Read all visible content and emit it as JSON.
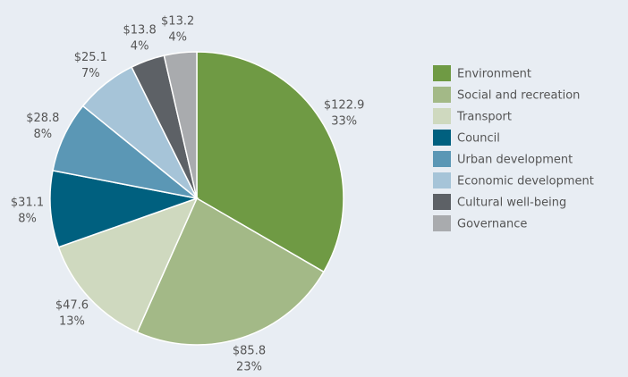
{
  "chart_data": {
    "type": "pie",
    "categories": [
      "Environment",
      "Social and recreation",
      "Transport",
      "Council",
      "Urban development",
      "Economic development",
      "Cultural well-being",
      "Governance"
    ],
    "values": [
      122.9,
      85.8,
      47.6,
      31.1,
      28.8,
      25.1,
      13.8,
      13.2
    ],
    "value_labels": [
      "$122.9",
      "$85.8",
      "$47.6",
      "$31.1",
      "$28.8",
      "$25.1",
      "$13.8",
      "$13.2"
    ],
    "percent_labels": [
      "33%",
      "23%",
      "13%",
      "8%",
      "8%",
      "7%",
      "4%",
      "4%"
    ],
    "colors": [
      "#6f9a44",
      "#a3b987",
      "#cfd9bf",
      "#00607f",
      "#5b97b5",
      "#a6c4d8",
      "#5d6166",
      "#a9abae"
    ],
    "legend": "right"
  }
}
